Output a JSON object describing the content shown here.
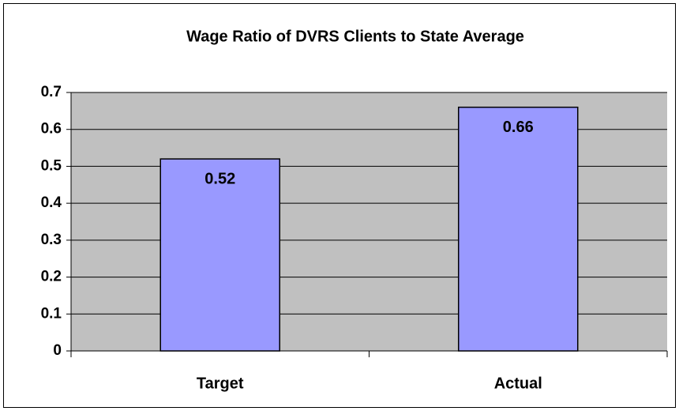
{
  "chart_data": {
    "type": "bar",
    "title": "Wage Ratio of DVRS Clients to State Average",
    "categories": [
      "Target",
      "Actual"
    ],
    "values": [
      0.52,
      0.66
    ],
    "color": "#9999ff",
    "ylim": [
      0,
      0.7
    ],
    "yticks": [
      0,
      0.1,
      0.2,
      0.3,
      0.4,
      0.5,
      0.6,
      0.7
    ],
    "grid": true
  }
}
